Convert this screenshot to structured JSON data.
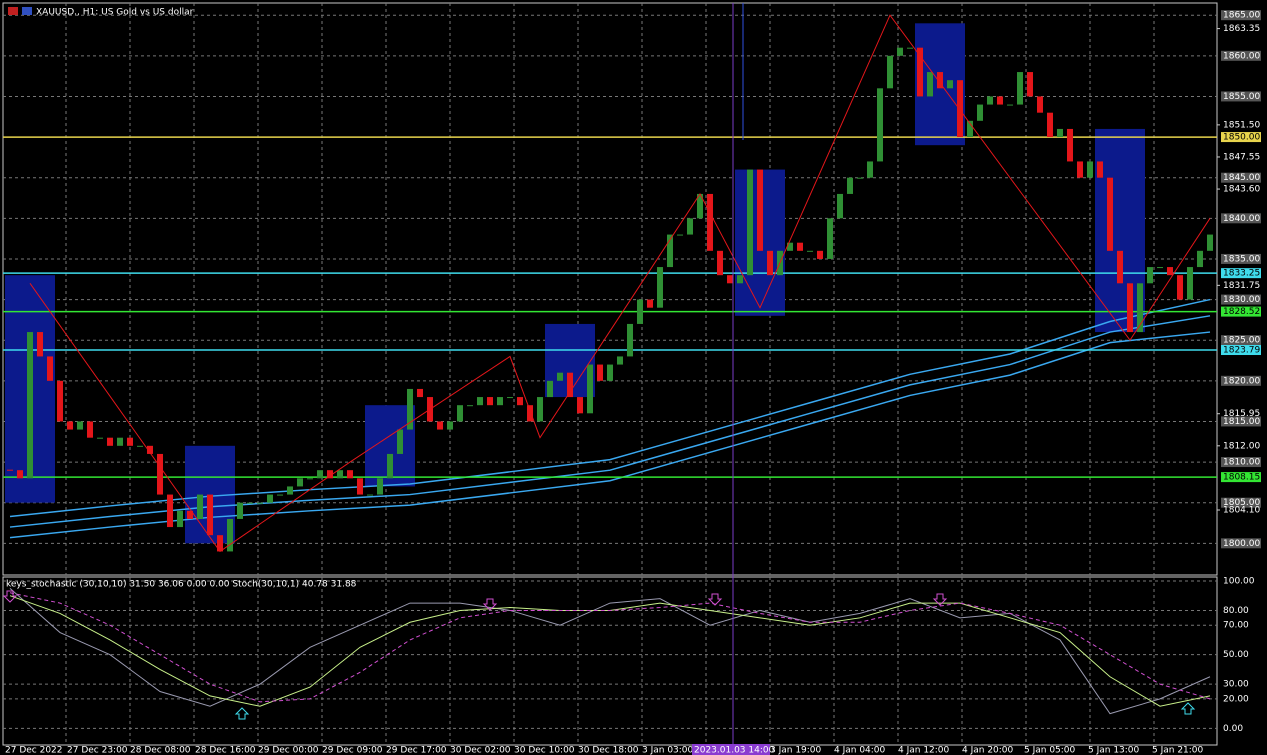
{
  "chart_data": [
    {
      "type": "candlestick",
      "title": "XAUUSD., H1: US Gold vs US dollar",
      "up_color": "#2f8f34",
      "down_color": "#e4161a",
      "close": [
        1809,
        1808,
        1826,
        1823,
        1820,
        1815,
        1814,
        1815,
        1813,
        1813,
        1812,
        1813,
        1812,
        1812,
        1811,
        1806,
        1802,
        1804,
        1803,
        1806,
        1801,
        1799,
        1803,
        1805,
        1805,
        1805,
        1806,
        1806,
        1807,
        1808,
        1808,
        1809,
        1808,
        1809,
        1808,
        1806,
        1806,
        1808,
        1811,
        1814,
        1819,
        1818,
        1815,
        1814,
        1815,
        1817,
        1817,
        1818,
        1817,
        1818,
        1818,
        1817,
        1815,
        1818,
        1820,
        1821,
        1818,
        1816,
        1822,
        1820,
        1822,
        1823,
        1827,
        1830,
        1829,
        1834,
        1838,
        1838,
        1840,
        1843,
        1836,
        1833,
        1832,
        1833,
        1846,
        1836,
        1833,
        1836,
        1837,
        1836,
        1836,
        1835,
        1840,
        1843,
        1845,
        1845,
        1847,
        1856,
        1860,
        1861,
        1861,
        1855,
        1858,
        1856,
        1857,
        1850,
        1852,
        1854,
        1855,
        1854,
        1854,
        1858,
        1855,
        1853,
        1850,
        1851,
        1847,
        1845,
        1847,
        1845,
        1836,
        1832,
        1826,
        1832,
        1834,
        1834,
        1833,
        1830,
        1834,
        1836,
        1838
      ],
      "ylim": [
        1796.1,
        1866.5
      ],
      "yticks": [
        {
          "value": 1865,
          "label": "1865.00"
        },
        {
          "value": 1860,
          "label": "1860.00"
        },
        {
          "value": 1855,
          "label": "1855.00"
        },
        {
          "value": 1845,
          "label": "1845.00"
        },
        {
          "value": 1840,
          "label": "1840.00"
        },
        {
          "value": 1835,
          "label": "1835.00"
        },
        {
          "value": 1830,
          "label": "1830.00"
        },
        {
          "value": 1825,
          "label": "1825.00"
        },
        {
          "value": 1820,
          "label": "1820.00"
        },
        {
          "value": 1815,
          "label": "1815.00"
        },
        {
          "value": 1810,
          "label": "1810.00"
        },
        {
          "value": 1805,
          "label": "1805.00"
        },
        {
          "value": 1800,
          "label": "1800.00"
        }
      ],
      "yticks_minor": [
        {
          "value": 1863.35,
          "label": "1863.35"
        },
        {
          "value": 1851.5,
          "label": "1851.50"
        },
        {
          "value": 1847.55,
          "label": "1847.55"
        },
        {
          "value": 1843.6,
          "label": "1843.60"
        },
        {
          "value": 1831.75,
          "label": "1831.75"
        },
        {
          "value": 1815.95,
          "label": "1815.95"
        },
        {
          "value": 1812,
          "label": "1812.00"
        },
        {
          "value": 1804.1,
          "label": "1804.10"
        }
      ],
      "levels": [
        {
          "value": 1850,
          "label": "1850.00",
          "color": "#e8d44d"
        },
        {
          "value": 1833.25,
          "label": "1833.25",
          "color": "#3fdced"
        },
        {
          "value": 1828.52,
          "label": "1828.52",
          "color": "#33e633"
        },
        {
          "value": 1823.79,
          "label": "1823.79",
          "color": "#3fdced"
        },
        {
          "value": 1808.15,
          "label": "1808.15",
          "color": "#33e633"
        }
      ],
      "ma_lines": [
        {
          "color": "#3aa8f0",
          "values": [
            1803.3,
            1804.6,
            1805.8,
            1806.6,
            1807.3,
            1808.8,
            1810.3,
            1813.8,
            1817.3,
            1820.8,
            1823.3,
            1827.3,
            1830
          ]
        },
        {
          "color": "#3aa8f0",
          "values": [
            1802,
            1803.3,
            1804.5,
            1805.3,
            1806,
            1807.5,
            1809,
            1812.5,
            1816,
            1819.5,
            1822,
            1826,
            1828
          ]
        },
        {
          "color": "#3aa8f0",
          "values": [
            1800.7,
            1802,
            1803.2,
            1804,
            1804.7,
            1806.2,
            1807.7,
            1811.2,
            1814.7,
            1818.2,
            1820.7,
            1824.7,
            1826
          ]
        }
      ],
      "zigzag": {
        "color": "#e4161a",
        "x": [
          2,
          21,
          34,
          50,
          53,
          69,
          75,
          88,
          112,
          120
        ],
        "values": [
          1832,
          1799,
          1810,
          1823,
          1813,
          1843,
          1829,
          1865,
          1825,
          1840
        ]
      },
      "zones": [
        {
          "from": 0,
          "to": 4,
          "high": 1833,
          "low": 1805
        },
        {
          "from": 18,
          "to": 22,
          "high": 1812,
          "low": 1800
        },
        {
          "from": 36,
          "to": 40,
          "high": 1817,
          "low": 1807
        },
        {
          "from": 54,
          "to": 58,
          "high": 1827,
          "low": 1818
        },
        {
          "from": 73,
          "to": 77,
          "high": 1846,
          "low": 1828
        },
        {
          "from": 91,
          "to": 95,
          "high": 1864,
          "low": 1849
        },
        {
          "from": 109,
          "to": 113,
          "high": 1851,
          "low": 1826
        }
      ],
      "x_labels": [
        "27 Dec 2022",
        "27 Dec 23:00",
        "28 Dec 08:00",
        "28 Dec 16:00",
        "29 Dec 00:00",
        "29 Dec 09:00",
        "29 Dec 17:00",
        "30 Dec 02:00",
        "30 Dec 10:00",
        "30 Dec 18:00",
        "3 Jan 03:00",
        "3 Jan 19:00",
        "4 Jan 04:00",
        "4 Jan 12:00",
        "4 Jan 20:00",
        "5 Jan 05:00",
        "5 Jan 13:00",
        "5 Jan 21:00"
      ],
      "crosshair": "2023.01.03 14:00"
    },
    {
      "type": "line",
      "title": "keys_stochastic (30,10,10) 31.50 36.06 0.00 0.00 Stoch(30,10,1) 40.78 31.88",
      "series": [
        {
          "color": "#9a9ab0",
          "dash": false,
          "values": [
            95,
            65,
            50,
            25,
            15,
            30,
            55,
            70,
            85,
            85,
            80,
            70,
            85,
            88,
            70,
            80,
            72,
            78,
            88,
            75,
            78,
            60,
            10,
            20,
            35
          ]
        },
        {
          "color": "#c8f08a",
          "dash": false,
          "values": [
            90,
            78,
            60,
            40,
            22,
            15,
            28,
            55,
            72,
            80,
            82,
            80,
            80,
            85,
            80,
            75,
            70,
            75,
            85,
            85,
            75,
            65,
            35,
            15,
            22
          ]
        },
        {
          "color": "#d050d0",
          "dash": true,
          "values": [
            92,
            85,
            70,
            50,
            30,
            18,
            20,
            38,
            60,
            75,
            80,
            80,
            80,
            82,
            85,
            78,
            72,
            72,
            80,
            85,
            78,
            70,
            50,
            30,
            20
          ]
        }
      ],
      "ylim": [
        -11.3,
        102.7
      ],
      "yticks": [
        {
          "value": 100,
          "label": "100.00"
        },
        {
          "value": 80,
          "label": "80.00"
        },
        {
          "value": 70,
          "label": "70.00"
        },
        {
          "value": 50,
          "label": "50.00"
        },
        {
          "value": 30,
          "label": "30.00"
        },
        {
          "value": 20,
          "label": "20.00"
        },
        {
          "value": 0,
          "label": "0.00"
        }
      ]
    }
  ]
}
